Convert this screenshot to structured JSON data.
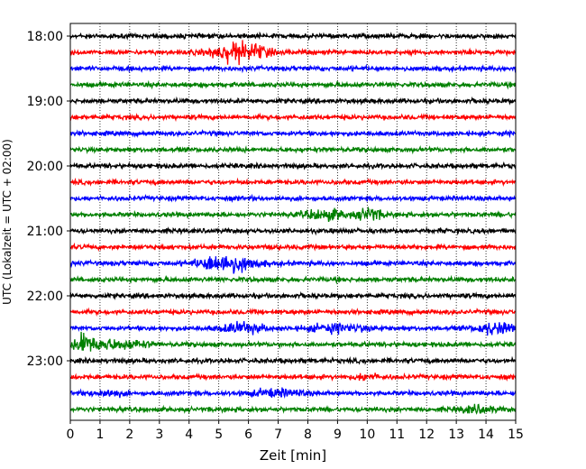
{
  "chart_data": {
    "type": "line",
    "title": "",
    "xlabel": "Zeit  [min]",
    "ylabel": "UTC (Lokalzeit = UTC + 02:00)",
    "xlim": [
      0,
      15
    ],
    "x_ticks": [
      "0",
      "1",
      "2",
      "3",
      "4",
      "5",
      "6",
      "7",
      "8",
      "9",
      "10",
      "11",
      "12",
      "13",
      "14",
      "15"
    ],
    "y_ticks": [
      "18:00",
      "19:00",
      "20:00",
      "21:00",
      "22:00",
      "23:00"
    ],
    "grid": "vertical dotted",
    "trace_interval_minutes": 15,
    "trace_colors": [
      "#000000",
      "#ff0000",
      "#0000ff",
      "#008000"
    ],
    "traces": [
      {
        "start": "18:00"
      },
      {
        "start": "18:15"
      },
      {
        "start": "18:30"
      },
      {
        "start": "18:45"
      },
      {
        "start": "19:00"
      },
      {
        "start": "19:15"
      },
      {
        "start": "19:30"
      },
      {
        "start": "19:45"
      },
      {
        "start": "20:00"
      },
      {
        "start": "20:15"
      },
      {
        "start": "20:30"
      },
      {
        "start": "20:45"
      },
      {
        "start": "21:00"
      },
      {
        "start": "21:15"
      },
      {
        "start": "21:30"
      },
      {
        "start": "21:45"
      },
      {
        "start": "22:00"
      },
      {
        "start": "22:15"
      },
      {
        "start": "22:30"
      },
      {
        "start": "22:45"
      },
      {
        "start": "23:00"
      },
      {
        "start": "23:15"
      },
      {
        "start": "23:30"
      },
      {
        "start": "23:45"
      }
    ]
  }
}
